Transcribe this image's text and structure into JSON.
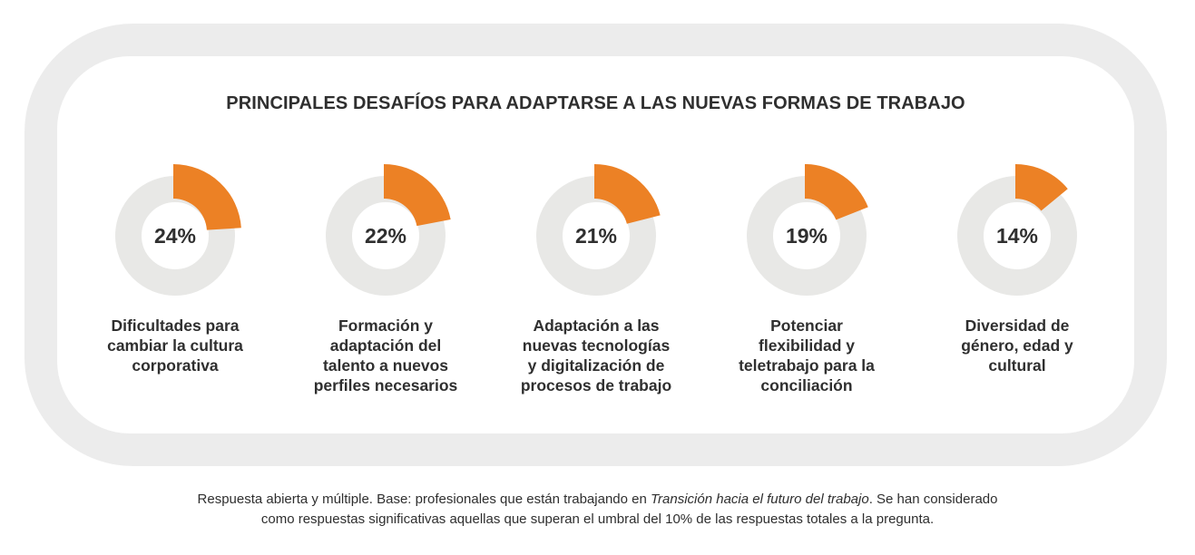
{
  "colors": {
    "accent": "#ec8125",
    "track": "#e8e8e6",
    "frame": "#ececec",
    "text": "#2f2f2f"
  },
  "chart_data": {
    "type": "pie",
    "title": "PRINCIPALES DESAFÍOS PARA ADAPTARSE A LAS NUEVAS FORMAS DE TRABAJO",
    "items": [
      {
        "value": 24,
        "value_label": "24%",
        "label": "Dificultades para\ncambiar la cultura\ncorporativa"
      },
      {
        "value": 22,
        "value_label": "22%",
        "label": "Formación y\nadaptación del\ntalento a nuevos\nperfiles necesarios"
      },
      {
        "value": 21,
        "value_label": "21%",
        "label": "Adaptación a las\nnuevas tecnologías\ny digitalización de\nprocesos de trabajo"
      },
      {
        "value": 19,
        "value_label": "19%",
        "label": "Potenciar\nflexibilidad y\nteletrabajo para la\nconciliación"
      },
      {
        "value": 14,
        "value_label": "14%",
        "label": "Diversidad de\ngénero, edad y\ncultural"
      }
    ]
  },
  "footnote": {
    "line1_before": "Respuesta abierta y múltiple. Base: profesionales que están trabajando en ",
    "line1_italic": "Transición hacia el futuro del trabajo",
    "line1_after": ". Se han considerado",
    "line2": "como respuestas significativas aquellas que superan el umbral del 10% de las respuestas totales a la pregunta."
  }
}
